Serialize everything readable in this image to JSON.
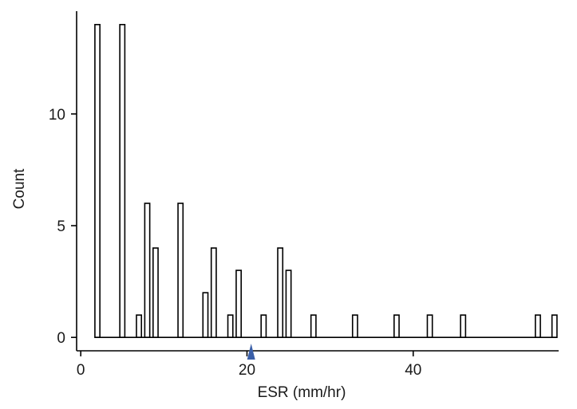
{
  "chart_data": {
    "type": "bar",
    "title": "",
    "xlabel": "ESR (mm/hr)",
    "ylabel": "Count",
    "xlim": [
      -0.5,
      57.5
    ],
    "ylim": [
      -0.6,
      14.6
    ],
    "x_ticks": [
      0,
      20,
      40
    ],
    "y_ticks": [
      0,
      5,
      10
    ],
    "grid": false,
    "legend": "none",
    "bar_width": 0.6,
    "points": [
      {
        "x": 2,
        "count": 14
      },
      {
        "x": 5,
        "count": 14
      },
      {
        "x": 7,
        "count": 1
      },
      {
        "x": 8,
        "count": 6
      },
      {
        "x": 9,
        "count": 4
      },
      {
        "x": 12,
        "count": 6
      },
      {
        "x": 15,
        "count": 2
      },
      {
        "x": 16,
        "count": 4
      },
      {
        "x": 18,
        "count": 1
      },
      {
        "x": 19,
        "count": 3
      },
      {
        "x": 22,
        "count": 1
      },
      {
        "x": 24,
        "count": 4
      },
      {
        "x": 25,
        "count": 3
      },
      {
        "x": 28,
        "count": 1
      },
      {
        "x": 33,
        "count": 1
      },
      {
        "x": 38,
        "count": 1
      },
      {
        "x": 42,
        "count": 1
      },
      {
        "x": 46,
        "count": 1
      },
      {
        "x": 55,
        "count": 1
      },
      {
        "x": 57,
        "count": 1
      }
    ],
    "marker": {
      "x": 20.5,
      "shape": "triangle-up",
      "color": "#3a5fa8"
    }
  }
}
